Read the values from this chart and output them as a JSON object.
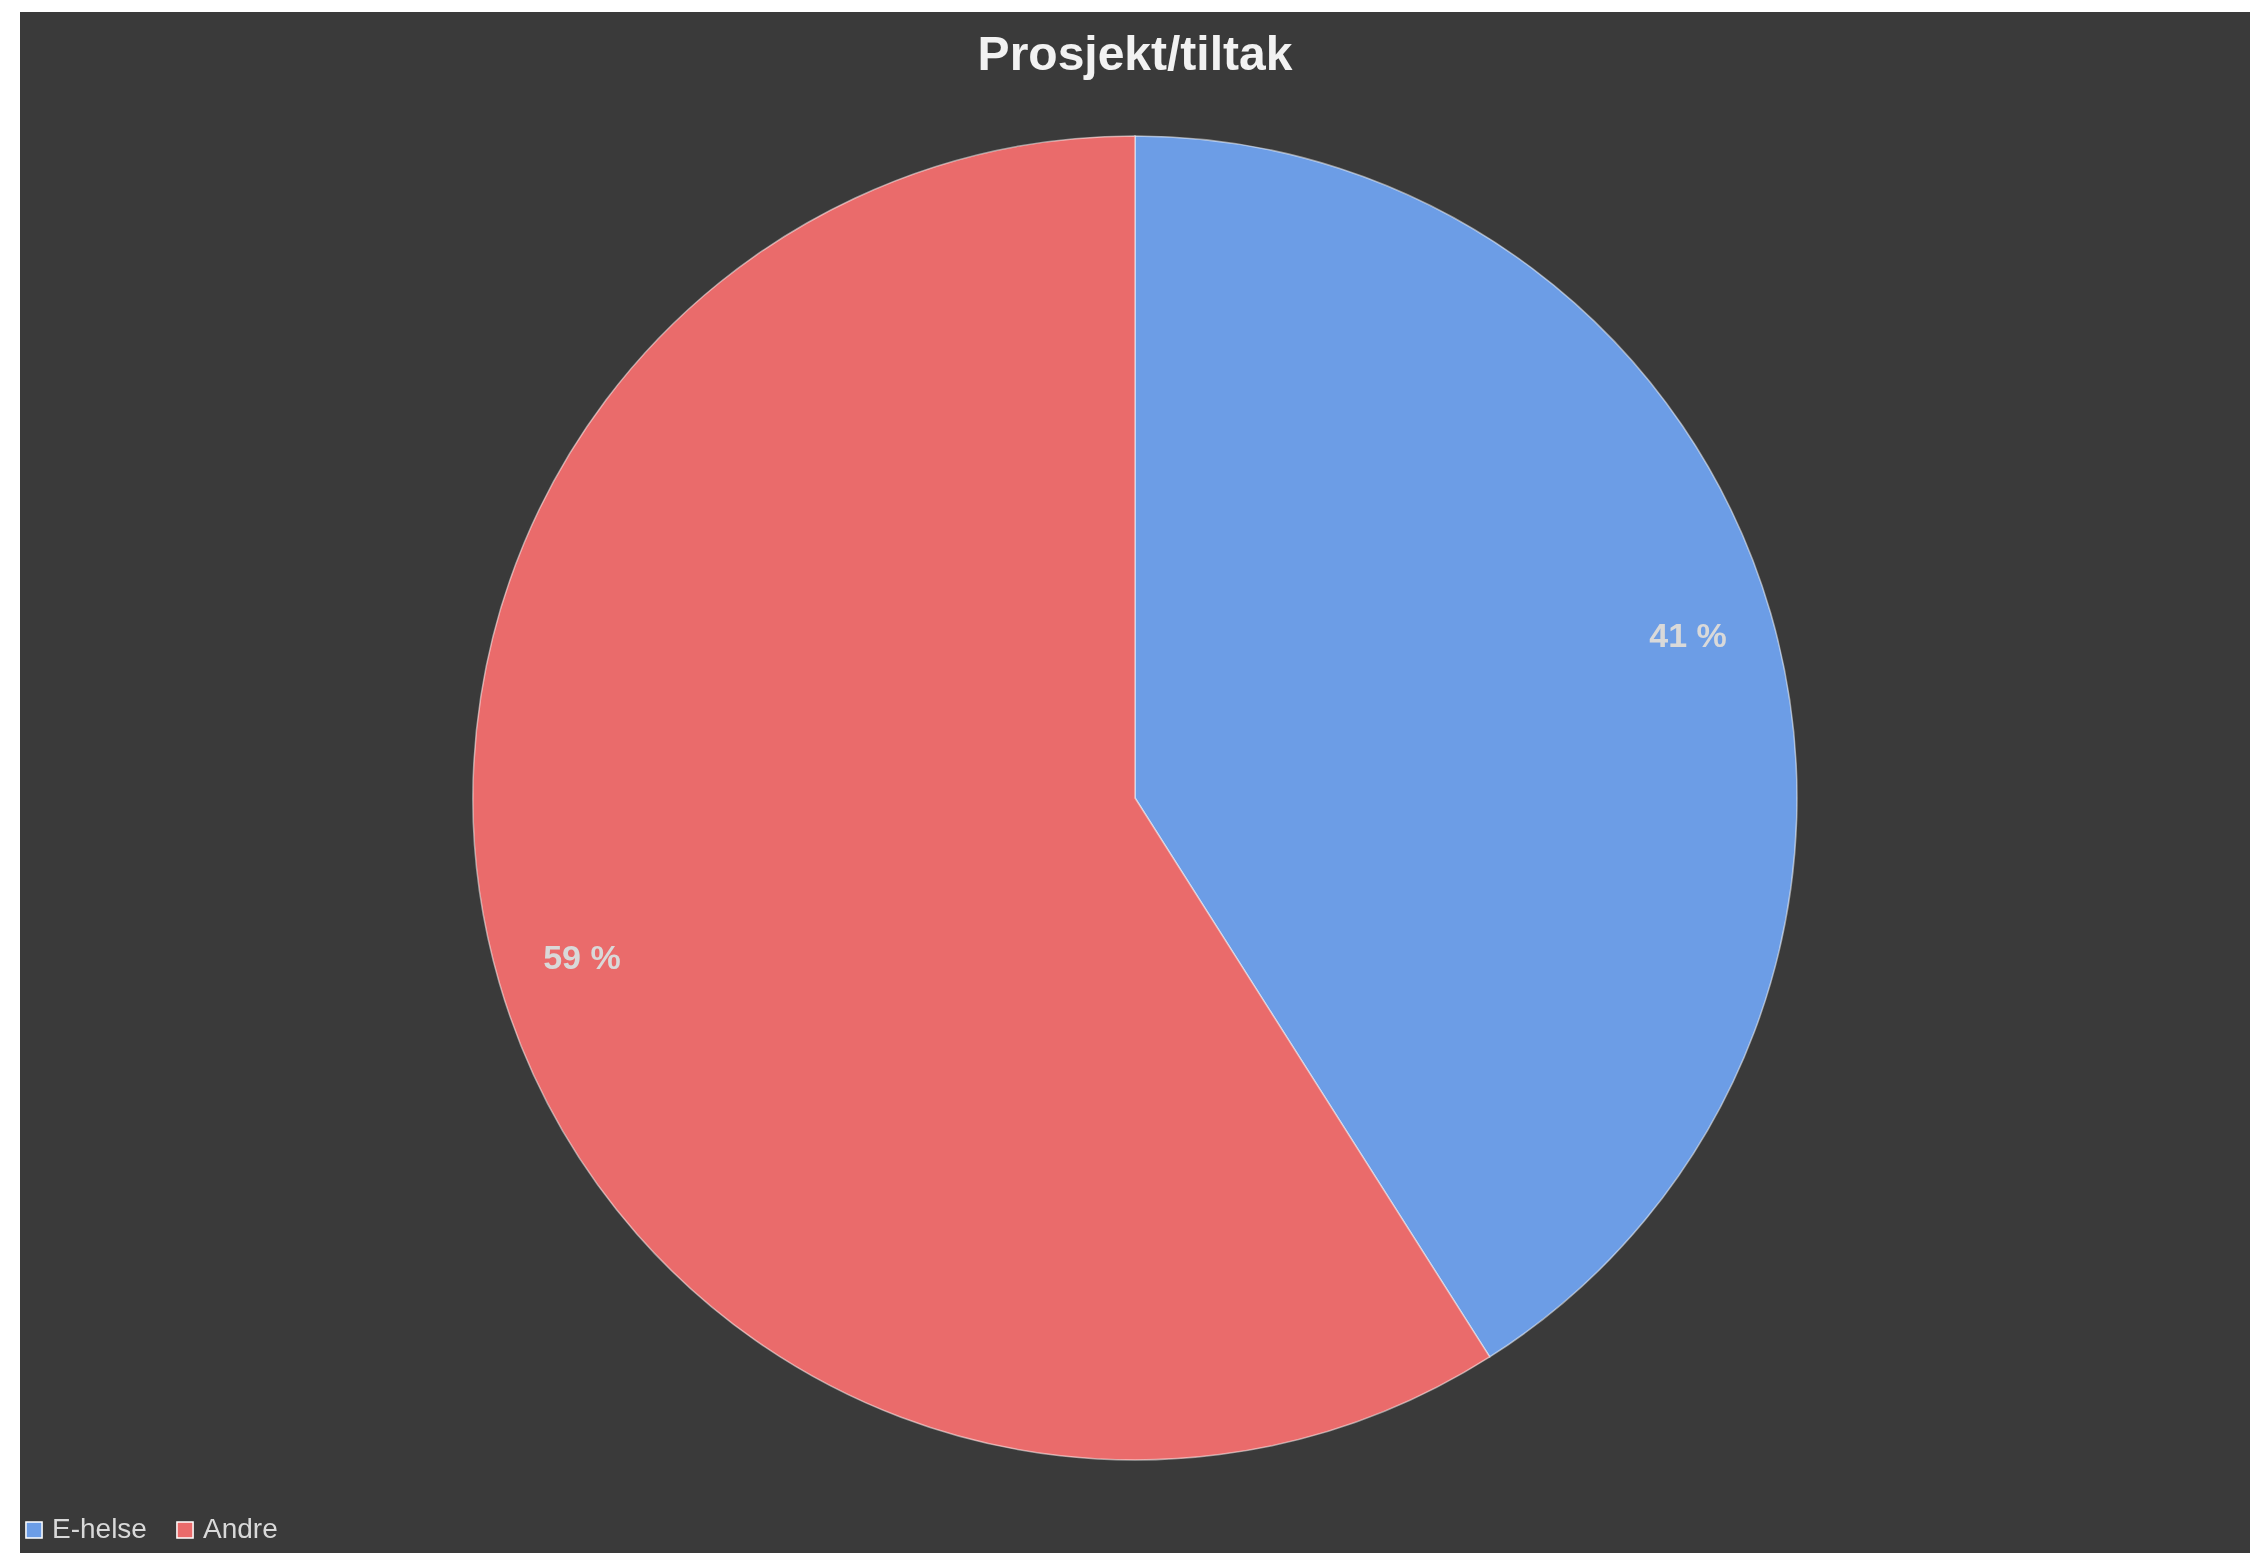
{
  "chart_data": {
    "type": "pie",
    "title": "Prosjekt/tiltak",
    "categories": [
      "E-helse",
      "Andre"
    ],
    "values": [
      41,
      59
    ],
    "colors": [
      "#6c9de6",
      "#ea6b6b"
    ],
    "value_labels": [
      "41 %",
      "59 %"
    ],
    "legend": "bottom"
  }
}
